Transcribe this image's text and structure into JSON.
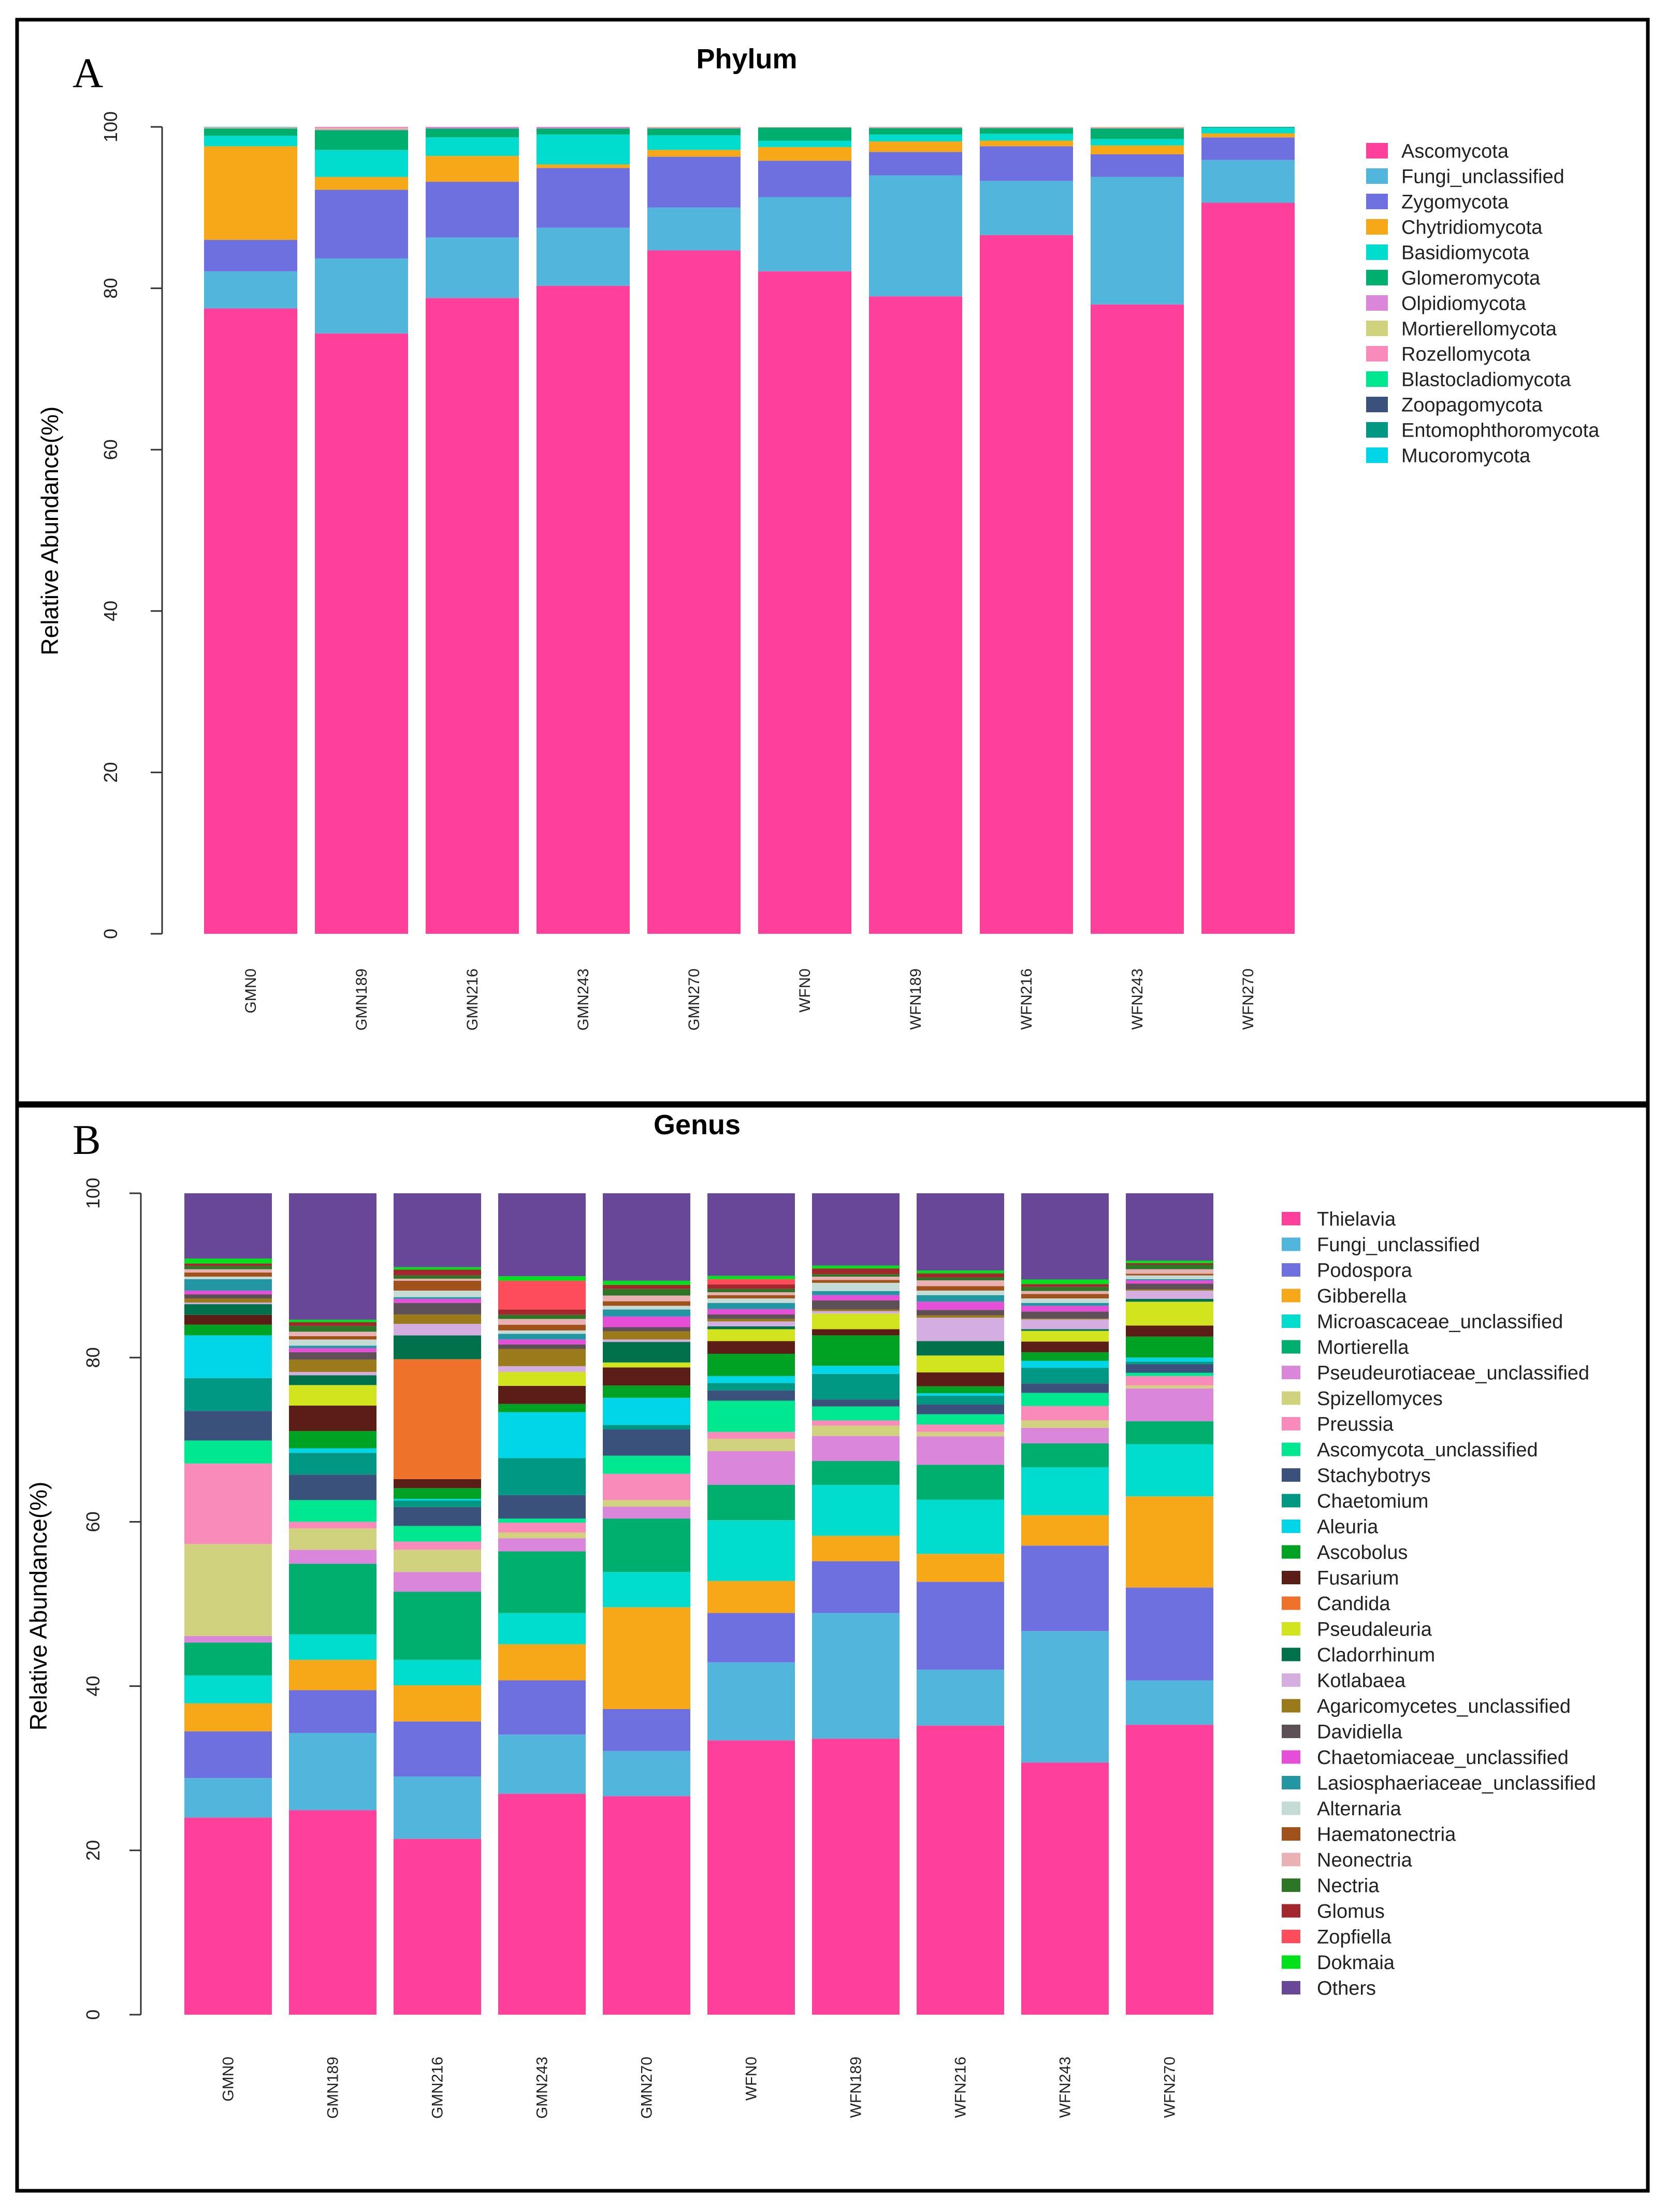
{
  "chart_data": [
    {
      "panel_label": "A",
      "type": "bar",
      "stacked": true,
      "title": "Phylum",
      "xlabel": "",
      "ylabel": "Relative Abundance(%)",
      "ylim": [
        0,
        100
      ],
      "yticks": [
        "0",
        "20",
        "40",
        "60",
        "80",
        "100"
      ],
      "grid": false,
      "legend_position": "right",
      "categories": [
        "GMN0",
        "GMN189",
        "GMN216",
        "GMN243",
        "GMN270",
        "WFN0",
        "WFN189",
        "WFN216",
        "WFN243",
        "WFN270"
      ],
      "series": [
        {
          "name": "Ascomycota",
          "color": "#ff409b",
          "values": [
            77.5,
            74.4,
            78.8,
            80.3,
            84.7,
            82.1,
            79.0,
            86.6,
            78.0,
            90.6
          ]
        },
        {
          "name": "Fungi_unclassified",
          "color": "#52b5dc",
          "values": [
            4.6,
            9.3,
            7.5,
            7.2,
            5.3,
            9.2,
            15.0,
            6.7,
            15.8,
            5.3
          ]
        },
        {
          "name": "Zygomycota",
          "color": "#6f70e0",
          "values": [
            3.9,
            8.5,
            6.9,
            7.4,
            6.3,
            4.5,
            2.9,
            4.3,
            2.8,
            2.8
          ]
        },
        {
          "name": "Chytridiomycota",
          "color": "#f7a819",
          "values": [
            11.6,
            1.6,
            3.2,
            0.45,
            0.85,
            1.7,
            1.3,
            0.7,
            1.1,
            0.5
          ]
        },
        {
          "name": "Basidiomycota",
          "color": "#00dccd",
          "values": [
            1.3,
            3.35,
            2.3,
            3.7,
            1.8,
            0.8,
            0.85,
            0.85,
            0.8,
            0.7
          ]
        },
        {
          "name": "Glomeromycota",
          "color": "#00ae6d",
          "values": [
            0.9,
            2.45,
            1.1,
            0.75,
            0.85,
            1.6,
            0.8,
            0.7,
            1.3,
            0.1
          ]
        },
        {
          "name": "Olpidiomycota",
          "color": "#da86da",
          "values": [
            0.05,
            0.1,
            0.2,
            0.2,
            0.1,
            0.05,
            0.05,
            0.05,
            0.1,
            0
          ]
        },
        {
          "name": "Mortierellomycota",
          "color": "#d1d27d",
          "values": [
            0.05,
            0.1,
            0,
            0,
            0.1,
            0.05,
            0.05,
            0.05,
            0.1,
            0
          ]
        },
        {
          "name": "Rozellomycota",
          "color": "#f98bba",
          "values": [
            0.05,
            0.2,
            0,
            0,
            0,
            0,
            0.05,
            0.05,
            0,
            0
          ]
        },
        {
          "name": "Blastocladiomycota",
          "color": "#00e88f",
          "values": [
            0.05,
            0,
            0,
            0,
            0,
            0,
            0,
            0,
            0,
            0
          ]
        },
        {
          "name": "Zoopagomycota",
          "color": "#3a527b",
          "values": [
            0,
            0,
            0,
            0,
            0,
            0,
            0,
            0,
            0,
            0
          ]
        },
        {
          "name": "Entomophthoromycota",
          "color": "#009883",
          "values": [
            0,
            0,
            0,
            0,
            0,
            0,
            0,
            0,
            0,
            0
          ]
        },
        {
          "name": "Mucoromycota",
          "color": "#00d6e8",
          "values": [
            0,
            0,
            0,
            0,
            0,
            0,
            0,
            0,
            0,
            0
          ]
        }
      ]
    },
    {
      "panel_label": "B",
      "type": "bar",
      "stacked": true,
      "title": "Genus",
      "xlabel": "",
      "ylabel": "Relative Abundance(%)",
      "ylim": [
        0,
        100
      ],
      "yticks": [
        "0",
        "20",
        "40",
        "60",
        "80",
        "100"
      ],
      "grid": false,
      "legend_position": "right",
      "categories": [
        "GMN0",
        "GMN189",
        "GMN216",
        "GMN243",
        "GMN270",
        "WFN0",
        "WFN189",
        "WFN216",
        "WFN243",
        "WFN270"
      ],
      "series": [
        {
          "name": "Thielavia",
          "color": "#ff409b",
          "values": [
            24.0,
            24.9,
            21.4,
            26.9,
            26.6,
            33.4,
            33.6,
            35.2,
            30.7,
            35.3
          ]
        },
        {
          "name": "Fungi_unclassified",
          "color": "#52b5dc",
          "values": [
            4.8,
            9.4,
            7.6,
            7.2,
            5.5,
            9.5,
            15.3,
            6.8,
            16.0,
            5.4
          ]
        },
        {
          "name": "Podospora",
          "color": "#6f70e0",
          "values": [
            5.7,
            5.2,
            6.7,
            6.6,
            5.1,
            6.0,
            6.3,
            10.7,
            10.4,
            11.3
          ]
        },
        {
          "name": "Gibberella",
          "color": "#f7a819",
          "values": [
            3.4,
            3.7,
            4.4,
            4.4,
            12.4,
            3.9,
            3.1,
            3.4,
            3.7,
            11.1
          ]
        },
        {
          "name": "Microascaceae_unclassified",
          "color": "#00dccd",
          "values": [
            3.4,
            3.1,
            3.1,
            3.8,
            4.3,
            7.4,
            6.2,
            6.6,
            5.85,
            6.35
          ]
        },
        {
          "name": "Mortierella",
          "color": "#00ae6d",
          "values": [
            4.0,
            8.6,
            8.3,
            7.5,
            6.5,
            4.3,
            2.9,
            4.25,
            2.9,
            2.8
          ]
        },
        {
          "name": "Pseudeurotiaceae_unclassified",
          "color": "#da86da",
          "values": [
            0.8,
            1.7,
            2.4,
            1.6,
            1.45,
            4.1,
            3.05,
            3.45,
            1.9,
            4.0
          ]
        },
        {
          "name": "Spizellomyces",
          "color": "#d1d27d",
          "values": [
            11.2,
            2.6,
            2.7,
            0.7,
            0.8,
            1.5,
            1.25,
            0.55,
            0.9,
            0.35
          ]
        },
        {
          "name": "Preussia",
          "color": "#f98bba",
          "values": [
            9.8,
            0.8,
            1.0,
            1.2,
            3.2,
            0.85,
            0.65,
            0.9,
            1.75,
            1.15
          ]
        },
        {
          "name": "Ascomycota_unclassified",
          "color": "#00e88f",
          "values": [
            2.8,
            2.65,
            1.9,
            0.5,
            2.2,
            3.8,
            1.7,
            1.25,
            1.6,
            0.4
          ]
        },
        {
          "name": "Stachybotrys",
          "color": "#3a527b",
          "values": [
            3.6,
            3.1,
            2.3,
            2.85,
            3.2,
            1.25,
            0.85,
            1.2,
            1.15,
            1.05
          ]
        },
        {
          "name": "Chaetomium",
          "color": "#009883",
          "values": [
            4.0,
            2.65,
            0.8,
            4.5,
            0.55,
            0.9,
            3.1,
            1.05,
            1.9,
            0.3
          ]
        },
        {
          "name": "Aleuria",
          "color": "#00d6e8",
          "values": [
            5.2,
            0.55,
            0.2,
            5.6,
            3.3,
            0.85,
            1.0,
            0.3,
            0.85,
            0.5
          ]
        },
        {
          "name": "Ascobolus",
          "color": "#00a223",
          "values": [
            1.3,
            2.1,
            1.3,
            1.0,
            1.5,
            2.7,
            3.7,
            0.85,
            1.05,
            2.55
          ]
        },
        {
          "name": "Fusarium",
          "color": "#5a1e16",
          "values": [
            1.2,
            3.1,
            1.1,
            2.2,
            2.2,
            1.55,
            0.75,
            1.7,
            1.3,
            1.35
          ]
        },
        {
          "name": "Candida",
          "color": "#ef722b",
          "values": [
            0,
            0,
            14.6,
            0,
            0,
            0,
            0,
            0,
            0,
            0
          ]
        },
        {
          "name": "Pseudaleuria",
          "color": "#d1e41e",
          "values": [
            0,
            2.5,
            0,
            1.7,
            0.6,
            1.45,
            1.9,
            2.05,
            1.3,
            2.9
          ]
        },
        {
          "name": "Cladorrhinum",
          "color": "#00714b",
          "values": [
            1.3,
            1.2,
            2.9,
            0,
            2.5,
            0.35,
            0,
            1.75,
            0.2,
            0.35
          ]
        },
        {
          "name": "Kotlabaea",
          "color": "#d4aee0",
          "values": [
            0.2,
            0.4,
            1.4,
            0.7,
            0.3,
            0.6,
            0.3,
            2.85,
            1.2,
            1.0
          ]
        },
        {
          "name": "Agaricomycetes_unclassified",
          "color": "#9a7a1b",
          "values": [
            0.5,
            1.5,
            1.15,
            2.1,
            1.0,
            0.3,
            0.2,
            0.3,
            0.1,
            0.15
          ]
        },
        {
          "name": "Davidiella",
          "color": "#5e5057",
          "values": [
            0.5,
            0.9,
            1.4,
            0.55,
            0.5,
            0.55,
            1.1,
            0.65,
            0.85,
            0.7
          ]
        },
        {
          "name": "Chaetomiaceae_unclassified",
          "color": "#e54fd8",
          "values": [
            0.45,
            0.5,
            0.5,
            0.6,
            1.3,
            0.65,
            0.65,
            1.0,
            0.7,
            0.4
          ]
        },
        {
          "name": "Lasiosphaeriaceae_unclassified",
          "color": "#2296a3",
          "values": [
            1.4,
            0.3,
            0.2,
            0.7,
            0.85,
            0.75,
            0.5,
            0.8,
            0.35,
            0.15
          ]
        },
        {
          "name": "Alternaria",
          "color": "#c5dbd5",
          "values": [
            0.3,
            0.75,
            0.8,
            0.4,
            0.45,
            0.55,
            1.0,
            0.55,
            0.55,
            0.45
          ]
        },
        {
          "name": "Haematonectria",
          "color": "#a1521b",
          "values": [
            0.5,
            0.4,
            1.2,
            0.7,
            0.55,
            0.4,
            0.35,
            0.55,
            0.55,
            0.2
          ]
        },
        {
          "name": "Neonectria",
          "color": "#e9b1b3",
          "values": [
            0.4,
            0.55,
            0.25,
            0.7,
            0.7,
            0.35,
            0.4,
            0.7,
            0.35,
            0.55
          ]
        },
        {
          "name": "Nectria",
          "color": "#2d7626",
          "values": [
            0.4,
            0.7,
            0.4,
            0.5,
            0.8,
            0.4,
            0.3,
            0.35,
            0.5,
            0.55
          ]
        },
        {
          "name": "Glomus",
          "color": "#a3282d",
          "values": [
            0.3,
            0.45,
            0.7,
            0.65,
            0.5,
            0.55,
            0.7,
            0.5,
            0.35,
            0.2
          ]
        },
        {
          "name": "Zopfiella",
          "color": "#fe4c5b",
          "values": [
            0,
            0,
            0,
            3.5,
            0,
            0.65,
            0,
            0,
            0,
            0
          ]
        },
        {
          "name": "Dokmaia",
          "color": "#00e11b",
          "values": [
            0.6,
            0.3,
            0.3,
            0.55,
            0.5,
            0.4,
            0.35,
            0.35,
            0.55,
            0.3
          ]
        },
        {
          "name": "Others",
          "color": "#684799",
          "values": [
            7.95,
            15.4,
            9.0,
            10.1,
            10.65,
            10.05,
            8.8,
            9.4,
            10.5,
            8.2
          ]
        }
      ]
    }
  ]
}
